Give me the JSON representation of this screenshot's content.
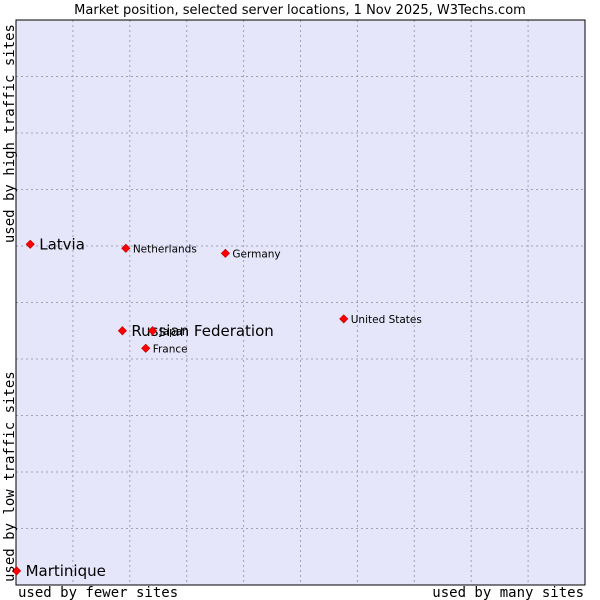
{
  "chart_data": {
    "type": "scatter",
    "title": "Market position, selected server locations, 1 Nov 2025, W3Techs.com",
    "xlabel_left": "used by fewer sites",
    "xlabel_right": "used by many sites",
    "ylabel_bottom": "used by low traffic sites",
    "ylabel_top": "used by high traffic sites",
    "xlim": [
      0,
      100
    ],
    "ylim": [
      0,
      100
    ],
    "grid": true,
    "colors": {
      "plot_bg": "#e6e6fa",
      "grid": "#a0a0b8",
      "marker": "#ff0000",
      "marker_edge": "#cc0000",
      "text": "#000000"
    },
    "points": [
      {
        "label": "Latvia",
        "x": 2.5,
        "y": 60.3,
        "emphasis": true
      },
      {
        "label": "Netherlands",
        "x": 19.3,
        "y": 59.6,
        "emphasis": false
      },
      {
        "label": "Germany",
        "x": 36.8,
        "y": 58.7,
        "emphasis": false
      },
      {
        "label": "United States",
        "x": 57.6,
        "y": 47.1,
        "emphasis": false
      },
      {
        "label": "Russian Federation",
        "x": 18.7,
        "y": 45.0,
        "emphasis": true
      },
      {
        "label": "Japan",
        "x": 24.0,
        "y": 45.0,
        "emphasis": false
      },
      {
        "label": "France",
        "x": 22.8,
        "y": 41.9,
        "emphasis": false
      },
      {
        "label": "Martinique",
        "x": 0.1,
        "y": 2.5,
        "emphasis": true
      }
    ]
  }
}
